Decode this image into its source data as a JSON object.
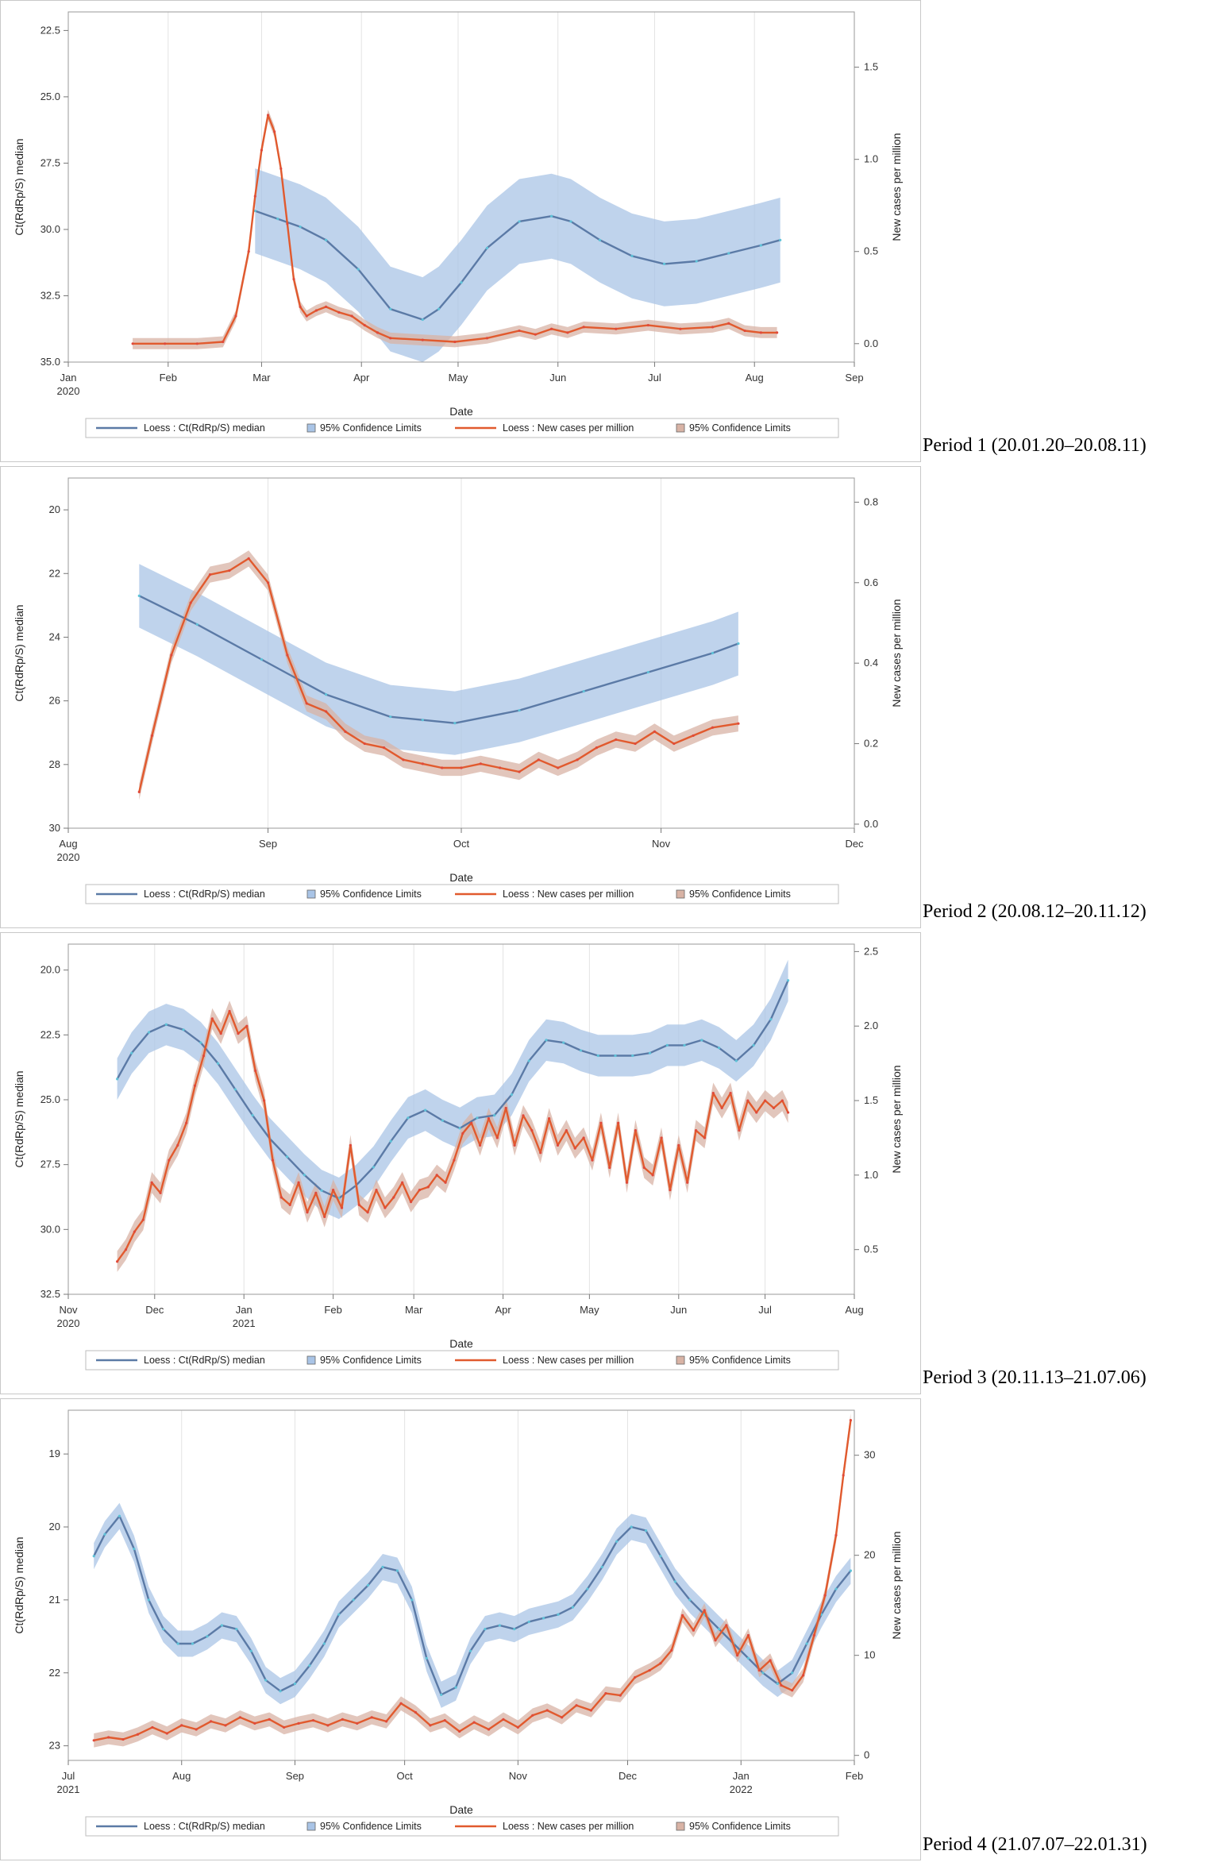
{
  "chart_data": [
    {
      "type": "line",
      "id": "p1",
      "period_label": "Period 1 (20.01.20–20.08.11)",
      "xlabel": "Date",
      "ylabel": "Ct(RdRp/S) median",
      "y2label": "New cases per million",
      "x_ticks": [
        "Jan\n2020",
        "Feb",
        "Mar",
        "Apr",
        "May",
        "Jun",
        "Jul",
        "Aug",
        "Sep"
      ],
      "x_tick_days": [
        0,
        31,
        60,
        91,
        121,
        152,
        182,
        213,
        244
      ],
      "x_range": [
        0,
        244
      ],
      "y_ticks": [
        "22.5",
        "25.0",
        "27.5",
        "30.0",
        "32.5",
        "35.0"
      ],
      "y_range_reversed": [
        21.8,
        35.0
      ],
      "y2_ticks": [
        "0.0",
        "0.5",
        "1.0",
        "1.5"
      ],
      "y2_range": [
        -0.1,
        1.8
      ],
      "series": [
        {
          "name": "Loess : Ct(RdRp/S) median",
          "axis": "left",
          "color": "#5b7aa6",
          "band_color": "#a9c4e6",
          "x": [
            58,
            65,
            72,
            80,
            90,
            100,
            110,
            115,
            122,
            130,
            140,
            150,
            156,
            165,
            175,
            185,
            195,
            205,
            215,
            221
          ],
          "y": [
            29.3,
            29.6,
            29.9,
            30.4,
            31.5,
            33.0,
            33.4,
            33.0,
            32.0,
            30.7,
            29.7,
            29.5,
            29.7,
            30.4,
            31.0,
            31.3,
            31.2,
            30.9,
            30.6,
            30.4
          ],
          "band_half_width": 1.6
        },
        {
          "name": "Loess : New cases per million",
          "axis": "right",
          "color": "#e15a2e",
          "band_color": "#d8b3a5",
          "x": [
            20,
            30,
            40,
            48,
            52,
            56,
            58,
            60,
            62,
            64,
            66,
            68,
            70,
            72,
            74,
            77,
            80,
            84,
            88,
            92,
            96,
            100,
            110,
            120,
            130,
            140,
            145,
            150,
            155,
            160,
            170,
            180,
            190,
            200,
            205,
            210,
            215,
            220
          ],
          "y": [
            0.0,
            0.0,
            0.0,
            0.01,
            0.15,
            0.5,
            0.8,
            1.05,
            1.24,
            1.15,
            0.95,
            0.65,
            0.35,
            0.2,
            0.15,
            0.18,
            0.2,
            0.17,
            0.15,
            0.1,
            0.06,
            0.03,
            0.02,
            0.01,
            0.03,
            0.07,
            0.05,
            0.08,
            0.06,
            0.09,
            0.08,
            0.1,
            0.08,
            0.09,
            0.11,
            0.07,
            0.06,
            0.06
          ],
          "band_half_width": 0.03
        }
      ],
      "legend": [
        "Loess : Ct(RdRp/S) median",
        "95% Confidence Limits",
        "Loess : New cases per million",
        "95% Confidence Limits"
      ]
    },
    {
      "type": "line",
      "id": "p2",
      "period_label": "Period 2 (20.08.12–20.11.12)",
      "xlabel": "Date",
      "ylabel": "Ct(RdRp/S) median",
      "y2label": "New cases per million",
      "x_ticks": [
        "Aug\n2020",
        "Sep",
        "Oct",
        "Nov",
        "Dec"
      ],
      "x_tick_days": [
        0,
        31,
        61,
        92,
        122
      ],
      "x_range": [
        0,
        122
      ],
      "y_ticks": [
        "20",
        "22",
        "24",
        "26",
        "28",
        "30"
      ],
      "y_range_reversed": [
        19.0,
        30.0
      ],
      "y2_ticks": [
        "0.0",
        "0.2",
        "0.4",
        "0.6",
        "0.8"
      ],
      "y2_range": [
        -0.01,
        0.86
      ],
      "series": [
        {
          "name": "Loess : Ct(RdRp/S) median",
          "axis": "left",
          "color": "#5b7aa6",
          "band_color": "#a9c4e6",
          "x": [
            11,
            20,
            30,
            40,
            50,
            55,
            60,
            70,
            80,
            90,
            100,
            104
          ],
          "y": [
            22.7,
            23.6,
            24.7,
            25.8,
            26.5,
            26.6,
            26.7,
            26.3,
            25.7,
            25.1,
            24.5,
            24.2
          ],
          "band_half_width": 1.0
        },
        {
          "name": "Loess : New cases per million",
          "axis": "right",
          "color": "#e15a2e",
          "band_color": "#d8b3a5",
          "x": [
            11,
            13,
            16,
            19,
            22,
            25,
            28,
            31,
            34,
            37,
            40,
            43,
            46,
            49,
            52,
            55,
            58,
            61,
            64,
            67,
            70,
            73,
            76,
            79,
            82,
            85,
            88,
            91,
            94,
            97,
            100,
            104
          ],
          "y": [
            0.08,
            0.22,
            0.42,
            0.55,
            0.62,
            0.63,
            0.66,
            0.6,
            0.42,
            0.3,
            0.28,
            0.23,
            0.2,
            0.19,
            0.16,
            0.15,
            0.14,
            0.14,
            0.15,
            0.14,
            0.13,
            0.16,
            0.14,
            0.16,
            0.19,
            0.21,
            0.2,
            0.23,
            0.2,
            0.22,
            0.24,
            0.25
          ],
          "band_half_width": 0.02
        }
      ],
      "legend": [
        "Loess : Ct(RdRp/S) median",
        "95% Confidence Limits",
        "Loess : New cases per million",
        "95% Confidence Limits"
      ]
    },
    {
      "type": "line",
      "id": "p3",
      "period_label": "Period 3 (20.11.13–21.07.06)",
      "xlabel": "Date",
      "ylabel": "Ct(RdRp/S) median",
      "y2label": "New cases per million",
      "x_ticks": [
        "Nov\n2020",
        "Dec",
        "Jan\n2021",
        "Feb",
        "Mar",
        "Apr",
        "May",
        "Jun",
        "Jul",
        "Aug"
      ],
      "x_tick_days": [
        0,
        30,
        61,
        92,
        120,
        151,
        181,
        212,
        242,
        273
      ],
      "x_range": [
        0,
        273
      ],
      "y_ticks": [
        "20.0",
        "22.5",
        "25.0",
        "27.5",
        "30.0",
        "32.5"
      ],
      "y_range_reversed": [
        19.0,
        32.5
      ],
      "y2_ticks": [
        "0.5",
        "1.0",
        "1.5",
        "2.0",
        "2.5"
      ],
      "y2_range": [
        0.2,
        2.55
      ],
      "series": [
        {
          "name": "Loess : Ct(RdRp/S) median",
          "axis": "left",
          "color": "#5b7aa6",
          "band_color": "#a9c4e6",
          "x": [
            17,
            22,
            28,
            34,
            40,
            46,
            52,
            58,
            64,
            70,
            76,
            82,
            88,
            94,
            100,
            106,
            112,
            118,
            124,
            130,
            136,
            142,
            148,
            154,
            160,
            166,
            172,
            178,
            184,
            190,
            196,
            202,
            208,
            214,
            220,
            226,
            232,
            238,
            244,
            250
          ],
          "y": [
            24.2,
            23.2,
            22.4,
            22.1,
            22.3,
            22.8,
            23.6,
            24.6,
            25.6,
            26.5,
            27.2,
            27.9,
            28.5,
            28.8,
            28.3,
            27.6,
            26.6,
            25.7,
            25.4,
            25.8,
            26.1,
            25.7,
            25.6,
            24.8,
            23.5,
            22.7,
            22.8,
            23.1,
            23.3,
            23.3,
            23.3,
            23.2,
            22.9,
            22.9,
            22.7,
            23.0,
            23.5,
            22.9,
            21.9,
            20.4
          ],
          "band_half_width": 0.8
        },
        {
          "name": "Loess : New cases per million",
          "axis": "right",
          "color": "#e15a2e",
          "band_color": "#d8b3a5",
          "x": [
            17,
            20,
            23,
            26,
            29,
            32,
            35,
            38,
            41,
            44,
            47,
            50,
            53,
            56,
            59,
            62,
            65,
            68,
            71,
            74,
            77,
            80,
            83,
            86,
            89,
            92,
            95,
            98,
            101,
            104,
            107,
            110,
            113,
            116,
            119,
            122,
            125,
            128,
            131,
            134,
            137,
            140,
            143,
            146,
            149,
            152,
            155,
            158,
            161,
            164,
            167,
            170,
            173,
            176,
            179,
            182,
            185,
            188,
            191,
            194,
            197,
            200,
            203,
            206,
            209,
            212,
            215,
            218,
            221,
            224,
            227,
            230,
            233,
            236,
            239,
            242,
            245,
            248,
            250
          ],
          "y": [
            0.42,
            0.5,
            0.62,
            0.7,
            0.95,
            0.88,
            1.1,
            1.2,
            1.35,
            1.6,
            1.8,
            2.05,
            1.95,
            2.1,
            1.95,
            2.0,
            1.7,
            1.5,
            1.1,
            0.85,
            0.8,
            0.95,
            0.75,
            0.88,
            0.72,
            0.9,
            0.78,
            1.2,
            0.8,
            0.75,
            0.9,
            0.78,
            0.85,
            0.95,
            0.82,
            0.9,
            0.92,
            1.0,
            0.95,
            1.1,
            1.28,
            1.35,
            1.2,
            1.38,
            1.25,
            1.45,
            1.2,
            1.4,
            1.3,
            1.15,
            1.38,
            1.2,
            1.3,
            1.18,
            1.25,
            1.1,
            1.35,
            1.05,
            1.35,
            0.95,
            1.3,
            1.05,
            1.0,
            1.25,
            0.9,
            1.2,
            0.95,
            1.3,
            1.25,
            1.55,
            1.45,
            1.55,
            1.3,
            1.5,
            1.42,
            1.5,
            1.45,
            1.5,
            1.42
          ],
          "band_half_width": 0.07
        }
      ],
      "legend": [
        "Loess : Ct(RdRp/S) median",
        "95% Confidence Limits",
        "Loess : New cases per million",
        "95% Confidence Limits"
      ]
    },
    {
      "type": "line",
      "id": "p4",
      "period_label": "Period 4 (21.07.07–22.01.31)",
      "xlabel": "Date",
      "ylabel": "Ct(RdRp/S) median",
      "y2label": "New cases per million",
      "x_ticks": [
        "Jul\n2021",
        "Aug",
        "Sep",
        "Oct",
        "Nov",
        "Dec",
        "Jan\n2022",
        "Feb"
      ],
      "x_tick_days": [
        0,
        31,
        62,
        92,
        123,
        153,
        184,
        215
      ],
      "x_range": [
        0,
        215
      ],
      "y_ticks": [
        "19",
        "20",
        "21",
        "22",
        "23"
      ],
      "y_range_reversed": [
        18.4,
        23.2
      ],
      "y2_ticks": [
        "0",
        "10",
        "20",
        "30"
      ],
      "y2_range": [
        -0.5,
        34.5
      ],
      "series": [
        {
          "name": "Loess : Ct(RdRp/S) median",
          "axis": "left",
          "color": "#5b7aa6",
          "band_color": "#a9c4e6",
          "x": [
            7,
            10,
            14,
            18,
            22,
            26,
            30,
            34,
            38,
            42,
            46,
            50,
            54,
            58,
            62,
            66,
            70,
            74,
            78,
            82,
            86,
            90,
            94,
            98,
            102,
            106,
            110,
            114,
            118,
            122,
            126,
            130,
            134,
            138,
            142,
            146,
            150,
            154,
            158,
            162,
            166,
            170,
            174,
            178,
            182,
            186,
            190,
            194,
            198,
            202,
            206,
            210,
            214
          ],
          "y": [
            20.4,
            20.1,
            19.85,
            20.3,
            21.0,
            21.4,
            21.6,
            21.6,
            21.5,
            21.35,
            21.4,
            21.7,
            22.1,
            22.25,
            22.15,
            21.9,
            21.6,
            21.2,
            21.0,
            20.8,
            20.55,
            20.6,
            21.0,
            21.8,
            22.3,
            22.2,
            21.7,
            21.4,
            21.35,
            21.4,
            21.3,
            21.25,
            21.2,
            21.1,
            20.85,
            20.55,
            20.2,
            20.0,
            20.05,
            20.4,
            20.75,
            21.0,
            21.2,
            21.4,
            21.6,
            21.8,
            22.0,
            22.15,
            22.0,
            21.6,
            21.2,
            20.85,
            20.6
          ],
          "band_half_width": 0.18
        },
        {
          "name": "Loess : New cases per million",
          "axis": "right",
          "color": "#e15a2e",
          "band_color": "#d8b3a5",
          "x": [
            7,
            11,
            15,
            19,
            23,
            27,
            31,
            35,
            39,
            43,
            47,
            51,
            55,
            59,
            63,
            67,
            71,
            75,
            79,
            83,
            87,
            91,
            95,
            99,
            103,
            107,
            111,
            115,
            119,
            123,
            127,
            131,
            135,
            139,
            143,
            147,
            151,
            155,
            159,
            162,
            165,
            168,
            171,
            174,
            177,
            180,
            183,
            186,
            189,
            192,
            195,
            198,
            201,
            204,
            207,
            210,
            212,
            214
          ],
          "y": [
            1.5,
            1.8,
            1.6,
            2.1,
            2.8,
            2.2,
            3.0,
            2.6,
            3.4,
            3.0,
            3.8,
            3.2,
            3.6,
            2.8,
            3.2,
            3.5,
            3.0,
            3.6,
            3.2,
            3.8,
            3.4,
            5.2,
            4.3,
            3.0,
            3.5,
            2.4,
            3.3,
            2.6,
            3.6,
            2.8,
            4.0,
            4.5,
            3.8,
            5.0,
            4.5,
            6.2,
            6.0,
            7.8,
            8.5,
            9.2,
            10.5,
            14.0,
            12.5,
            14.5,
            11.5,
            13.0,
            10.0,
            12.0,
            8.5,
            9.5,
            7.0,
            6.5,
            8.0,
            12.0,
            16.0,
            22.0,
            28.0,
            33.5
          ],
          "band_half_width": 0.7
        }
      ],
      "legend": [
        "Loess : Ct(RdRp/S) median",
        "95% Confidence Limits",
        "Loess : New cases per million",
        "95% Confidence Limits"
      ]
    }
  ]
}
